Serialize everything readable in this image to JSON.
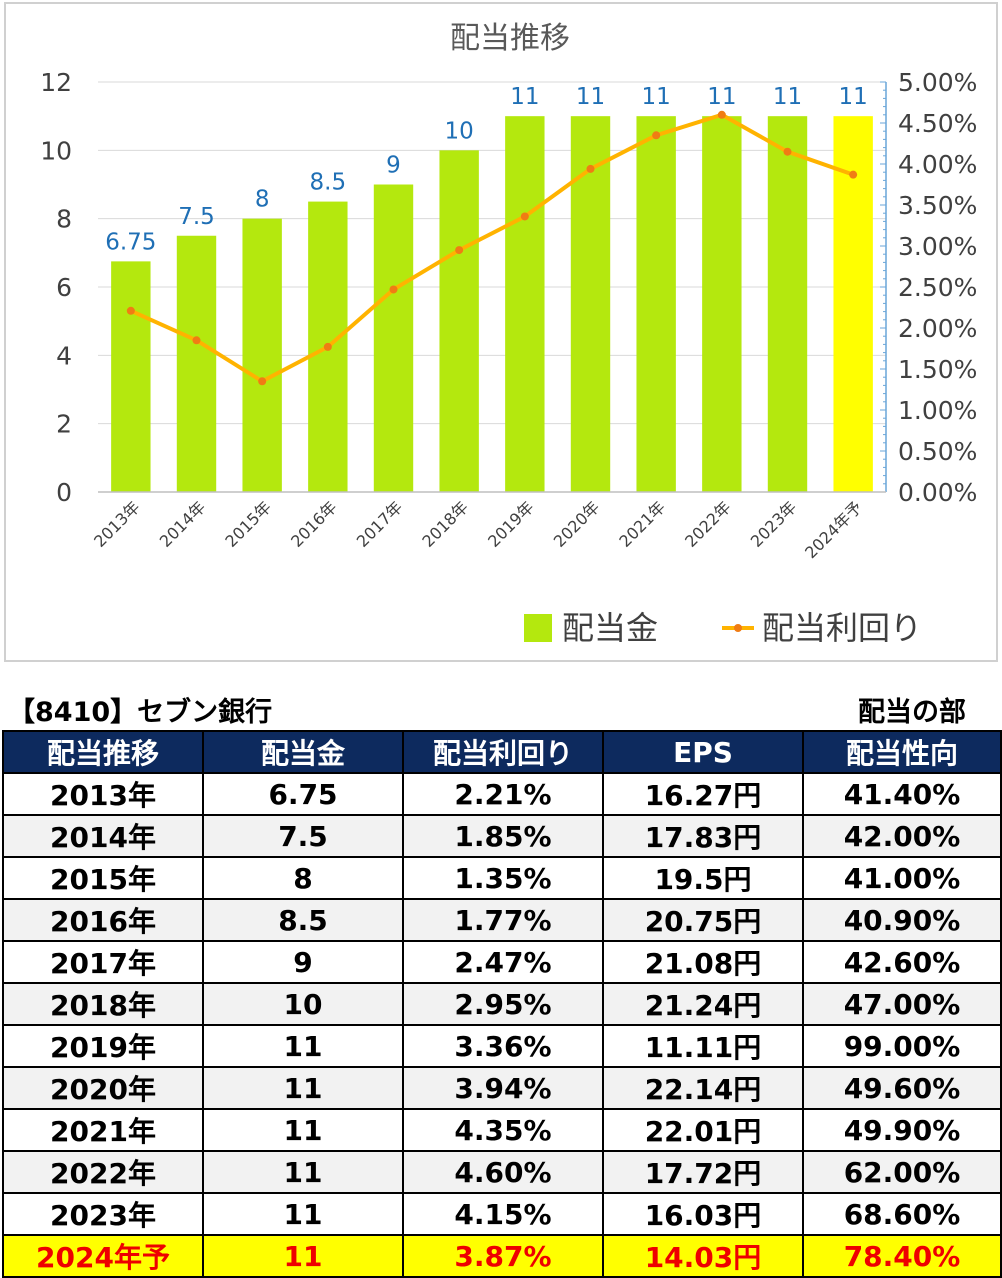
{
  "chart_data": {
    "type": "bar+line",
    "title": "配当推移",
    "categories": [
      "2013年",
      "2014年",
      "2015年",
      "2016年",
      "2017年",
      "2018年",
      "2019年",
      "2020年",
      "2021年",
      "2022年",
      "2023年",
      "2024年予"
    ],
    "series": [
      {
        "name": "配当金",
        "type": "bar",
        "axis": "left",
        "values": [
          6.75,
          7.5,
          8,
          8.5,
          9,
          10,
          11,
          11,
          11,
          11,
          11,
          11
        ],
        "labels": [
          "6.75",
          "7.5",
          "8",
          "8.5",
          "9",
          "10",
          "11",
          "11",
          "11",
          "11",
          "11",
          "11"
        ],
        "color": "#b4e80e",
        "highlight_color": "#ffff00",
        "highlight_index": 11
      },
      {
        "name": "配当利回り",
        "type": "line",
        "axis": "right",
        "values": [
          2.21,
          1.85,
          1.35,
          1.77,
          2.47,
          2.95,
          3.36,
          3.94,
          4.35,
          4.6,
          4.15,
          3.87
        ],
        "color": "#ffb300",
        "marker_color": "#f07c14"
      }
    ],
    "y_left": {
      "min": 0,
      "max": 12,
      "ticks": [
        "0",
        "2",
        "4",
        "6",
        "8",
        "10",
        "12"
      ]
    },
    "y_right": {
      "min": 0,
      "max": 5,
      "ticks": [
        "0.00%",
        "0.50%",
        "1.00%",
        "1.50%",
        "2.00%",
        "2.50%",
        "3.00%",
        "3.50%",
        "4.00%",
        "4.50%",
        "5.00%"
      ]
    },
    "grid": true,
    "legend_position": "bottom-right",
    "colors": {
      "bar": "#b4e80e",
      "bar_highlight": "#ffff00",
      "line": "#ffb300",
      "marker": "#f07c14",
      "label": "#1f6fb5",
      "grid": "#d9d9d9",
      "axis_right": "#6aa6d8"
    }
  },
  "table": {
    "title": "【8410】セブン銀行",
    "section": "配当の部",
    "headers": [
      "配当推移",
      "配当金",
      "配当利回り",
      "EPS",
      "配当性向"
    ],
    "rows": [
      [
        "2013年",
        "6.75",
        "2.21%",
        "16.27円",
        "41.40%"
      ],
      [
        "2014年",
        "7.5",
        "1.85%",
        "17.83円",
        "42.00%"
      ],
      [
        "2015年",
        "8",
        "1.35%",
        "19.5円",
        "41.00%"
      ],
      [
        "2016年",
        "8.5",
        "1.77%",
        "20.75円",
        "40.90%"
      ],
      [
        "2017年",
        "9",
        "2.47%",
        "21.08円",
        "42.60%"
      ],
      [
        "2018年",
        "10",
        "2.95%",
        "21.24円",
        "47.00%"
      ],
      [
        "2019年",
        "11",
        "3.36%",
        "11.11円",
        "99.00%"
      ],
      [
        "2020年",
        "11",
        "3.94%",
        "22.14円",
        "49.60%"
      ],
      [
        "2021年",
        "11",
        "4.35%",
        "22.01円",
        "49.90%"
      ],
      [
        "2022年",
        "11",
        "4.60%",
        "17.72円",
        "62.00%"
      ],
      [
        "2023年",
        "11",
        "4.15%",
        "16.03円",
        "68.60%"
      ],
      [
        "2024年予",
        "11",
        "3.87%",
        "14.03円",
        "78.40%"
      ]
    ],
    "highlight_row": 11,
    "colors": {
      "header_bg": "#0d2a5e",
      "header_text": "#ffffff",
      "highlight_bg": "#ffff00",
      "highlight_text": "#ee0000",
      "stripe": "#f2f2f2"
    }
  }
}
